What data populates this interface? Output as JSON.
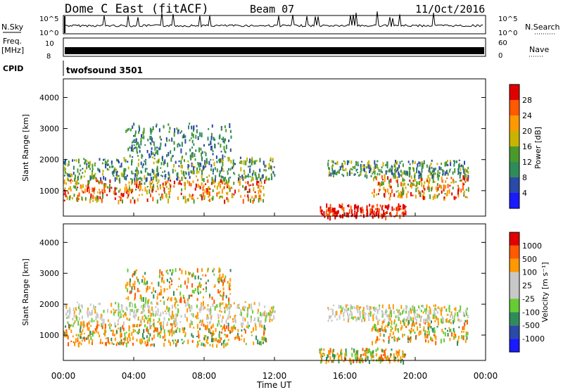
{
  "header": {
    "station": "Dome C East (fitACF)",
    "beam": "Beam 07",
    "date": "11/Oct/2016"
  },
  "top_panels": {
    "nsky_label": "N.Sky",
    "nsky_ticks": [
      "10^5",
      "10^0"
    ],
    "nsearch_label": "N.Search",
    "nsearch_ticks": [
      "10^5",
      "10^0"
    ],
    "freq_label_line1": "Freq.",
    "freq_label_line2": "[MHz]",
    "freq_ticks": [
      "10",
      "8"
    ],
    "nave_label": "Nave",
    "nave_ticks": [
      "60",
      "0"
    ],
    "cpid_label": "CPID",
    "cpid_value": "twofsound 3501"
  },
  "colors": {
    "power_scale": [
      "#1a1aff",
      "#2a4aa8",
      "#2f8c5a",
      "#4a9a2a",
      "#c8b400",
      "#ff9900",
      "#ff5a00",
      "#e00000"
    ],
    "velocity_scale": [
      "#e00000",
      "#ff5a00",
      "#ff9900",
      "#c8c8c8",
      "#c8c8c8",
      "#66cc33",
      "#2f8c5a",
      "#2a4aa8",
      "#1a1aff"
    ]
  },
  "chart_data": [
    {
      "type": "heatmap",
      "panel": "power",
      "ylabel": "Slant Range [km]",
      "yticks": [
        "1000",
        "2000",
        "3000",
        "4000"
      ],
      "ylim": [
        180,
        4600
      ],
      "colorbar_label": "Power [dB]",
      "colorbar_ticks": [
        "4",
        "8",
        "12",
        "16",
        "20",
        "24",
        "28"
      ],
      "colorbar_range": [
        0,
        32
      ],
      "scatter_regions_note": "",
      "regions": [
        {
          "t0": 0.0,
          "t1": 11.5,
          "r0": 700,
          "r1": 1400,
          "level": "high"
        },
        {
          "t0": 0.0,
          "t1": 12.0,
          "r0": 1400,
          "r1": 2100,
          "level": "mid"
        },
        {
          "t0": 3.5,
          "t1": 9.5,
          "r0": 2100,
          "r1": 3200,
          "level": "low"
        },
        {
          "t0": 14.5,
          "t1": 19.5,
          "r0": 180,
          "r1": 600,
          "level": "max"
        },
        {
          "t0": 17.5,
          "t1": 23.0,
          "r0": 800,
          "r1": 1500,
          "level": "high"
        },
        {
          "t0": 15.0,
          "t1": 23.0,
          "r0": 1500,
          "r1": 2000,
          "level": "mid"
        }
      ]
    },
    {
      "type": "heatmap",
      "panel": "velocity",
      "ylabel": "Slant Range [km]",
      "yticks": [
        "1000",
        "2000",
        "3000",
        "4000"
      ],
      "ylim": [
        180,
        4600
      ],
      "colorbar_label": "Velocity [m s⁻¹]",
      "colorbar_ticks": [
        "1000",
        "500",
        "100",
        "25",
        "-25",
        "-100",
        "-500",
        "-1000"
      ],
      "regions": [
        {
          "t0": 0.0,
          "t1": 11.5,
          "r0": 700,
          "r1": 1400,
          "level": "neg"
        },
        {
          "t0": 0.0,
          "t1": 12.0,
          "r0": 1400,
          "r1": 2100,
          "level": "neutral"
        },
        {
          "t0": 3.5,
          "t1": 9.5,
          "r0": 2100,
          "r1": 3200,
          "level": "neg"
        },
        {
          "t0": 14.5,
          "t1": 19.5,
          "r0": 180,
          "r1": 600,
          "level": "neg"
        },
        {
          "t0": 17.5,
          "t1": 23.0,
          "r0": 800,
          "r1": 1500,
          "level": "neg"
        },
        {
          "t0": 15.0,
          "t1": 23.0,
          "r0": 1500,
          "r1": 2000,
          "level": "neutral"
        }
      ]
    }
  ],
  "xaxis": {
    "label": "Time UT",
    "ticks": [
      "00:00",
      "04:00",
      "08:00",
      "12:00",
      "16:00",
      "20:00",
      "00:00"
    ],
    "range_hours": [
      0,
      24
    ]
  }
}
